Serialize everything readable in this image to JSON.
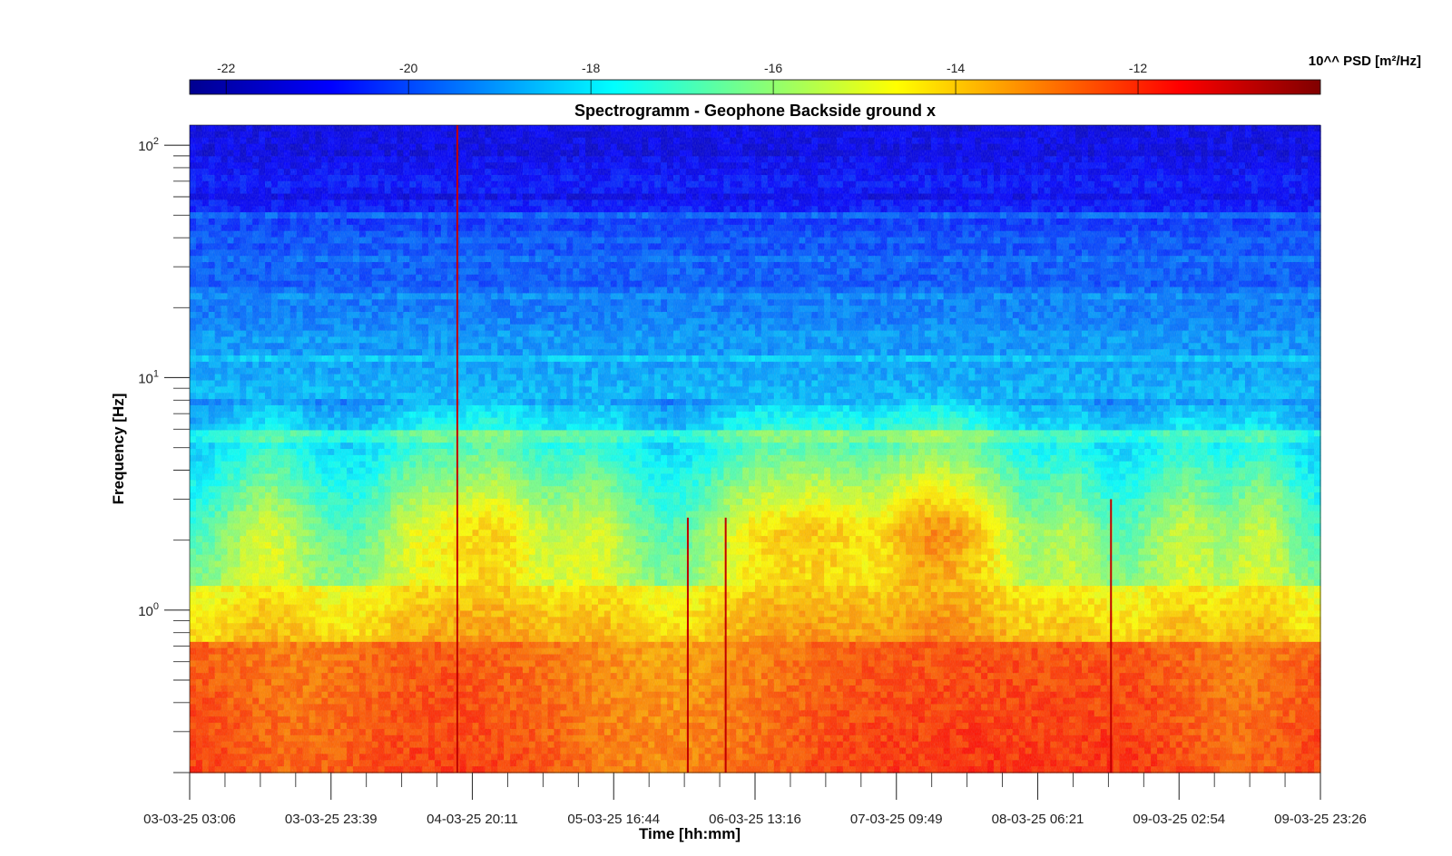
{
  "chart_data": {
    "type": "heatmap",
    "title": "Spectrogramm - Geophone Backside ground x",
    "xlabel": "Time [hh:mm]",
    "ylabel": "Frequency [Hz]",
    "y_scale": "log",
    "ylim": [
      0.2,
      122
    ],
    "x_ticks": [
      "03-03-25 03:06",
      "03-03-25 23:39",
      "04-03-25 20:11",
      "05-03-25 16:44",
      "06-03-25 13:16",
      "07-03-25 09:49",
      "08-03-25 06:21",
      "09-03-25 02:54",
      "09-03-25 23:26"
    ],
    "y_ticks": [
      {
        "base": "10",
        "exp": "0",
        "value": 1
      },
      {
        "base": "10",
        "exp": "1",
        "value": 10
      },
      {
        "base": "10",
        "exp": "2",
        "value": 100
      }
    ],
    "colorbar": {
      "label": "10^^ PSD [m²/Hz]",
      "placement": "top",
      "range": [
        -22.4,
        -10.0
      ],
      "ticks": [
        "-22",
        "-20",
        "-18",
        "-16",
        "-14",
        "-12"
      ],
      "colormap": "jet"
    },
    "features": {
      "noise_floor_high_freq": -21.0,
      "resonance_band_hz": 5.6,
      "peak_low_freq_level": -10.8,
      "transient_events": [
        "04-03-25 18:00",
        "06-03-25 03:30",
        "06-03-25 09:00",
        "08-03-25 17:00"
      ]
    }
  }
}
